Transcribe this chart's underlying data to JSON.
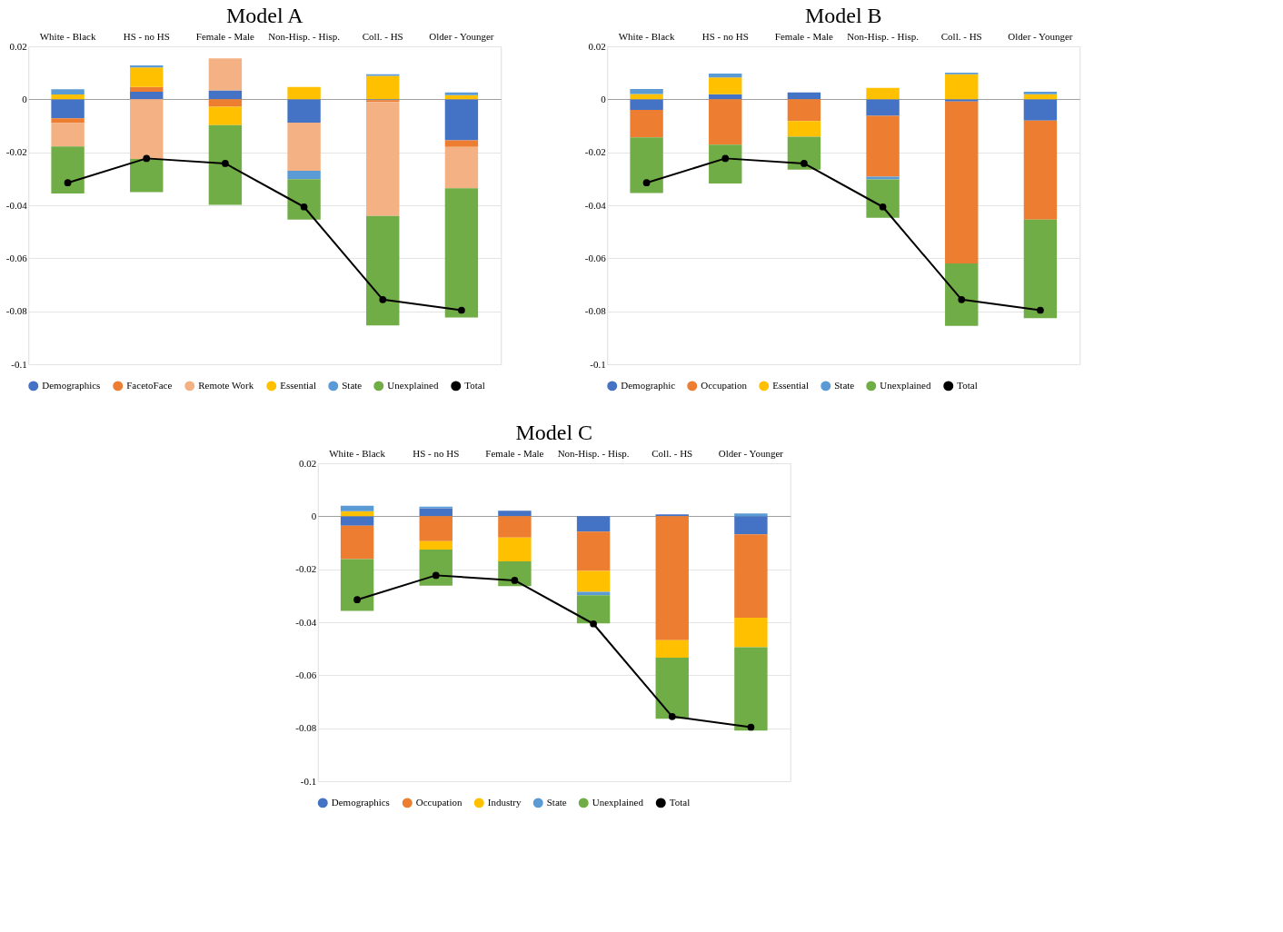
{
  "chart_data": [
    {
      "type": "bar",
      "title": "Model A",
      "stacked": true,
      "grid": "y",
      "legend": "bottom",
      "ylim": [
        -0.1,
        0.02
      ],
      "yticks": [
        0.02,
        0,
        -0.02,
        -0.04,
        -0.06,
        -0.08,
        -0.1
      ],
      "categories": [
        "White - Black",
        "HS - no HS",
        "Female - Male",
        "Non-Hisp. - Hisp.",
        "Coll. - HS",
        "Older - Younger"
      ],
      "series": [
        {
          "name": "Demographics",
          "color": "#4472c4",
          "values": [
            -0.0072,
            0.0029,
            0.0034,
            -0.0088,
            -0.0003,
            -0.0155
          ]
        },
        {
          "name": "FacetoFace",
          "color": "#ed7d31",
          "values": [
            -0.0018,
            0.0018,
            -0.0028,
            null,
            -0.0007,
            -0.0025
          ]
        },
        {
          "name": "Remote Work",
          "color": "#f4b183",
          "values": [
            -0.0088,
            -0.0225,
            0.0121,
            -0.0182,
            -0.043,
            -0.0156
          ]
        },
        {
          "name": "Essential",
          "color": "#ffc000",
          "values": [
            0.0018,
            0.0073,
            -0.0069,
            0.0047,
            0.0089,
            0.0016
          ]
        },
        {
          "name": "State",
          "color": "#5b9bd5",
          "values": [
            0.002,
            0.0008,
            null,
            -0.0031,
            0.0006,
            0.001
          ]
        },
        {
          "name": "Unexplained",
          "color": "#70ad47",
          "values": [
            -0.0177,
            -0.0125,
            -0.0301,
            -0.0153,
            -0.0413,
            -0.0487
          ]
        },
        {
          "name": "Total",
          "type": "line",
          "color": "#000000",
          "marker": "circle",
          "line_style": "solid",
          "values": [
            -0.0315,
            -0.0223,
            -0.0242,
            -0.0406,
            -0.0756,
            -0.0796
          ]
        }
      ]
    },
    {
      "type": "bar",
      "title": "Model B",
      "stacked": true,
      "grid": "y",
      "legend": "bottom",
      "ylim": [
        -0.1,
        0.02
      ],
      "yticks": [
        0.02,
        0,
        -0.02,
        -0.04,
        -0.06,
        -0.08,
        -0.1
      ],
      "categories": [
        "White - Black",
        "HS - no HS",
        "Female - Male",
        "Non-Hisp. - Hisp.",
        "Coll. - HS",
        "Older - Younger"
      ],
      "series": [
        {
          "name": "Demographic",
          "color": "#4472c4",
          "values": [
            -0.004,
            0.0019,
            0.0026,
            -0.0062,
            -0.0008,
            -0.008
          ]
        },
        {
          "name": "Occupation",
          "color": "#ed7d31",
          "values": [
            -0.0104,
            -0.0171,
            -0.0082,
            -0.023,
            -0.0611,
            -0.0374
          ]
        },
        {
          "name": "Essential",
          "color": "#ffc000",
          "values": [
            0.002,
            0.0064,
            -0.0059,
            0.0043,
            0.0095,
            0.0019
          ]
        },
        {
          "name": "State",
          "color": "#5b9bd5",
          "values": [
            0.0019,
            0.0014,
            null,
            -0.001,
            0.0006,
            0.001
          ]
        },
        {
          "name": "Unexplained",
          "color": "#70ad47",
          "values": [
            -0.021,
            -0.0147,
            -0.0124,
            -0.0145,
            -0.0236,
            -0.0372
          ]
        },
        {
          "name": "Total",
          "type": "line",
          "color": "#000000",
          "marker": "circle",
          "line_style": "solid",
          "values": [
            -0.0315,
            -0.0223,
            -0.0242,
            -0.0406,
            -0.0756,
            -0.0796
          ]
        }
      ]
    },
    {
      "type": "bar",
      "title": "Model C",
      "stacked": true,
      "grid": "y",
      "legend": "bottom",
      "ylim": [
        -0.1,
        0.02
      ],
      "yticks": [
        0.02,
        0,
        -0.02,
        -0.04,
        -0.06,
        -0.08,
        -0.1
      ],
      "categories": [
        "White - Black",
        "HS - no HS",
        "Female - Male",
        "Non-Hisp. - Hisp.",
        "Coll. - HS",
        "Older - Younger"
      ],
      "series": [
        {
          "name": "Demographics",
          "color": "#4472c4",
          "values": [
            -0.0036,
            0.003,
            0.0021,
            -0.0058,
            0.0007,
            -0.0068
          ]
        },
        {
          "name": "Occupation",
          "color": "#ed7d31",
          "values": [
            -0.0126,
            -0.0094,
            -0.008,
            -0.0148,
            -0.0468,
            -0.0315
          ]
        },
        {
          "name": "Industry",
          "color": "#ffc000",
          "values": [
            0.0019,
            -0.0032,
            -0.009,
            -0.0079,
            -0.0066,
            -0.0111
          ]
        },
        {
          "name": "State",
          "color": "#5b9bd5",
          "values": [
            0.0021,
            0.0006,
            null,
            -0.0013,
            null,
            0.0011
          ]
        },
        {
          "name": "Unexplained",
          "color": "#70ad47",
          "values": [
            -0.0195,
            -0.0136,
            -0.0094,
            -0.0106,
            -0.023,
            -0.0315
          ]
        },
        {
          "name": "Total",
          "type": "line",
          "color": "#000000",
          "marker": "circle",
          "line_style": "solid",
          "values": [
            -0.0315,
            -0.0223,
            -0.0242,
            -0.0406,
            -0.0756,
            -0.0796
          ]
        }
      ]
    }
  ]
}
